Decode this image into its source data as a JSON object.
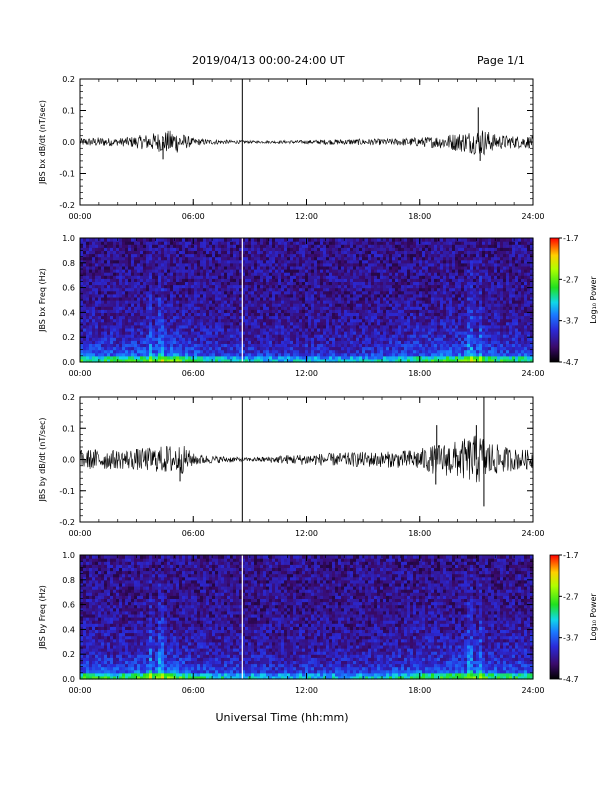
{
  "header": {
    "date_range": "2019/04/13  00:00-24:00 UT",
    "page": "Page 1/1"
  },
  "xlabel": "Universal Time (hh:mm)",
  "colorbar": {
    "title": "Log₁₀ Power",
    "ticks": [
      "-1.7",
      "-2.7",
      "-3.7",
      "-4.7"
    ],
    "range": [
      -4.7,
      -1.7
    ]
  },
  "chart_data": [
    {
      "type": "line",
      "ylabel": "JBS bx dB/dt (nT/sec)",
      "xlim": [
        0,
        24
      ],
      "ylim": [
        -0.2,
        0.2
      ],
      "x_ticks": [
        "00:00",
        "06:00",
        "12:00",
        "18:00",
        "24:00"
      ],
      "y_ticks": [
        "0.2",
        "0.1",
        "0.0",
        "-0.1",
        "-0.2"
      ],
      "envelope": {
        "x": [
          0,
          1,
          2,
          3,
          4,
          4.5,
          5,
          5.5,
          6,
          7,
          8,
          8.6,
          9,
          10,
          11,
          12,
          13,
          14,
          15,
          16,
          17,
          18,
          19,
          20,
          20.5,
          21,
          21.3,
          22,
          23,
          24
        ],
        "amp": [
          0.012,
          0.015,
          0.012,
          0.02,
          0.03,
          0.035,
          0.04,
          0.025,
          0.012,
          0.008,
          0.006,
          0.005,
          0.004,
          0.004,
          0.005,
          0.006,
          0.008,
          0.009,
          0.01,
          0.01,
          0.012,
          0.015,
          0.02,
          0.03,
          0.035,
          0.04,
          0.045,
          0.025,
          0.02,
          0.02
        ]
      },
      "spikes": [
        {
          "x": 21.1,
          "y": 0.11
        },
        {
          "x": 21.2,
          "y": -0.06
        },
        {
          "x": 4.4,
          "y": -0.055
        }
      ],
      "gap_x": 8.6
    },
    {
      "type": "heatmap",
      "ylabel": "JBS bx Freq (Hz)",
      "xlim": [
        0,
        24
      ],
      "ylim": [
        0,
        1.0
      ],
      "x_ticks": [
        "00:00",
        "06:00",
        "12:00",
        "18:00",
        "24:00"
      ],
      "y_ticks": [
        "1.0",
        "0.8",
        "0.6",
        "0.4",
        "0.2",
        "0.0"
      ],
      "gap_x": 8.6
    },
    {
      "type": "line",
      "ylabel": "JBS by dB/dt (nT/sec)",
      "xlim": [
        0,
        24
      ],
      "ylim": [
        -0.2,
        0.2
      ],
      "x_ticks": [
        "00:00",
        "06:00",
        "12:00",
        "18:00",
        "24:00"
      ],
      "y_ticks": [
        "0.2",
        "0.1",
        "0.0",
        "-0.1",
        "-0.2"
      ],
      "envelope": {
        "x": [
          0,
          1,
          2,
          3,
          4,
          4.5,
          5,
          5.5,
          6,
          7,
          8,
          8.6,
          9,
          10,
          11,
          12,
          13,
          14,
          15,
          16,
          17,
          18,
          19,
          20,
          20.5,
          21,
          21.3,
          22,
          23,
          24
        ],
        "amp": [
          0.03,
          0.035,
          0.03,
          0.035,
          0.04,
          0.045,
          0.05,
          0.045,
          0.02,
          0.012,
          0.01,
          0.006,
          0.006,
          0.01,
          0.015,
          0.018,
          0.02,
          0.022,
          0.025,
          0.025,
          0.028,
          0.035,
          0.05,
          0.06,
          0.07,
          0.08,
          0.08,
          0.05,
          0.035,
          0.03
        ]
      },
      "spikes": [
        {
          "x": 18.9,
          "y": 0.11
        },
        {
          "x": 18.85,
          "y": -0.08
        },
        {
          "x": 21.4,
          "y": 0.2
        },
        {
          "x": 21.4,
          "y": -0.15
        },
        {
          "x": 21.0,
          "y": 0.11
        },
        {
          "x": 5.3,
          "y": -0.07
        }
      ],
      "gap_x": 8.6
    },
    {
      "type": "heatmap",
      "ylabel": "JBS by Freq (Hz)",
      "xlim": [
        0,
        24
      ],
      "ylim": [
        0,
        1.0
      ],
      "x_ticks": [
        "00:00",
        "06:00",
        "12:00",
        "18:00",
        "24:00"
      ],
      "y_ticks": [
        "1.0",
        "0.8",
        "0.6",
        "0.4",
        "0.2",
        "0.0"
      ],
      "gap_x": 8.6
    }
  ]
}
